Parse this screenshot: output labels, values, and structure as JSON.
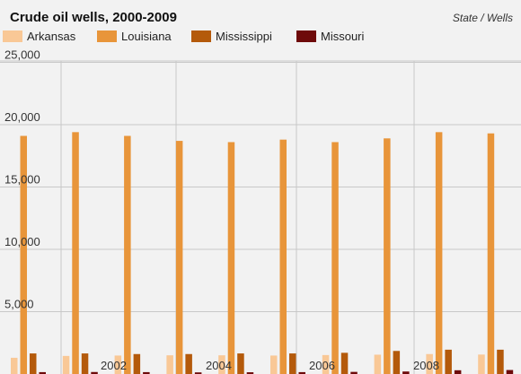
{
  "title": "Crude oil wells, 2000-2009",
  "subtitle": "State / Wells",
  "colors": {
    "background": "#f2f2f2",
    "grid": "#c8c8c8"
  },
  "chart_data": {
    "type": "bar",
    "title": "Crude oil wells, 2000-2009",
    "subtitle": "State / Wells",
    "xlabel": "",
    "ylabel": "",
    "ylim": [
      0,
      25000
    ],
    "grid": true,
    "legend_position": "top",
    "categories": [
      "2000",
      "2001",
      "2002",
      "2003",
      "2004",
      "2005",
      "2006",
      "2007",
      "2008",
      "2009"
    ],
    "x_tick_labels": [
      "2002",
      "2004",
      "2006",
      "2008"
    ],
    "y_tick_labels": [
      "5,000",
      "10,000",
      "15,000",
      "20,000",
      "25,000"
    ],
    "y_ticks": [
      5000,
      10000,
      15000,
      20000,
      25000
    ],
    "series": [
      {
        "name": "Arkansas",
        "color": "#f9c896",
        "values": [
          1300,
          1450,
          1480,
          1500,
          1500,
          1480,
          1520,
          1550,
          1600,
          1560
        ]
      },
      {
        "name": "Louisiana",
        "color": "#e8953a",
        "values": [
          19100,
          19400,
          19100,
          18700,
          18600,
          18800,
          18600,
          18900,
          19400,
          19300
        ]
      },
      {
        "name": "Mississippi",
        "color": "#b45a0b",
        "values": [
          1650,
          1650,
          1600,
          1600,
          1650,
          1650,
          1700,
          1850,
          1950,
          1950
        ]
      },
      {
        "name": "Missouri",
        "color": "#6e0a0a",
        "values": [
          150,
          160,
          150,
          130,
          140,
          150,
          170,
          200,
          300,
          320
        ]
      }
    ]
  }
}
